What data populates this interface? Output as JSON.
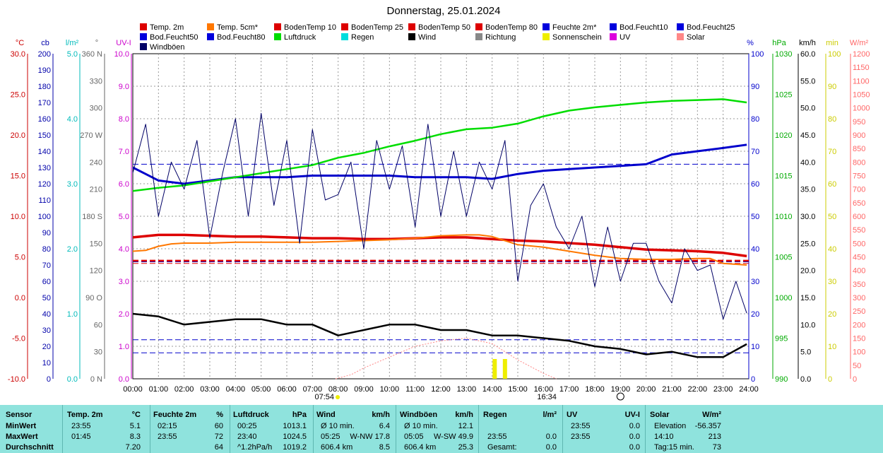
{
  "title": "Donnerstag, 25.01.2024",
  "left_axes": [
    {
      "unit": "°C",
      "color": "#cc0000",
      "labels": [
        "30.0",
        "25.0",
        "20.0",
        "15.0",
        "10.0",
        "5.0",
        "0.0",
        "-5.0",
        "-10.0"
      ]
    },
    {
      "unit": "cb",
      "color": "#0000aa",
      "labels": [
        "200",
        "190",
        "180",
        "170",
        "160",
        "150",
        "140",
        "130",
        "120",
        "110",
        "100",
        "90",
        "80",
        "70",
        "60",
        "50",
        "40",
        "30",
        "20",
        "10",
        "0"
      ]
    },
    {
      "unit": "l/m²",
      "color": "#00bbbb",
      "labels": [
        "5.0",
        "4.0",
        "3.0",
        "2.0",
        "1.0",
        "0.0"
      ]
    },
    {
      "unit": "°",
      "color": "#666666",
      "labels": [
        "360 N",
        "330",
        "300",
        "270 W",
        "240",
        "210",
        "180 S",
        "150",
        "120",
        "90 O",
        "60",
        "30",
        "0 N"
      ]
    },
    {
      "unit": "UV-I",
      "color": "#cc00cc",
      "labels": [
        "10.0",
        "9.0",
        "8.0",
        "7.0",
        "6.0",
        "5.0",
        "4.0",
        "3.0",
        "2.0",
        "1.0",
        "0.0"
      ]
    }
  ],
  "right_axes": [
    {
      "unit": "%",
      "color": "#0000cc",
      "labels": [
        "100",
        "90",
        "80",
        "70",
        "60",
        "50",
        "40",
        "30",
        "20",
        "10",
        "0"
      ]
    },
    {
      "unit": "hPa",
      "color": "#00aa00",
      "labels": [
        "1030",
        "1025",
        "1020",
        "1015",
        "1010",
        "1005",
        "1000",
        "995",
        "990"
      ]
    },
    {
      "unit": "km/h",
      "color": "#000000",
      "labels": [
        "60.0",
        "55.0",
        "50.0",
        "45.0",
        "40.0",
        "35.0",
        "30.0",
        "25.0",
        "20.0",
        "15.0",
        "10.0",
        "5.0",
        "0.0"
      ]
    },
    {
      "unit": "min",
      "color": "#cccc00",
      "labels": [
        "100",
        "90",
        "80",
        "70",
        "60",
        "50",
        "40",
        "30",
        "20",
        "10",
        "0"
      ]
    },
    {
      "unit": "W/m²",
      "color": "#ff6666",
      "labels": [
        "1200",
        "1150",
        "1100",
        "1050",
        "1000",
        "950",
        "900",
        "850",
        "800",
        "750",
        "700",
        "650",
        "600",
        "550",
        "500",
        "450",
        "400",
        "350",
        "300",
        "250",
        "200",
        "150",
        "100",
        "50",
        "0"
      ]
    }
  ],
  "x_labels": [
    "00:00",
    "01:00",
    "02:00",
    "03:00",
    "04:00",
    "05:00",
    "06:00",
    "07:00",
    "08:00",
    "09:00",
    "10:00",
    "11:00",
    "12:00",
    "13:00",
    "14:00",
    "15:00",
    "16:00",
    "17:00",
    "18:00",
    "19:00",
    "20:00",
    "21:00",
    "22:00",
    "23:00",
    "24:00"
  ],
  "sunrise": "07:54",
  "sunset": "16:34",
  "legend": [
    {
      "label": "Temp. 2m",
      "color": "#dd0000"
    },
    {
      "label": "Temp. 5cm*",
      "color": "#ff7700"
    },
    {
      "label": "BodenTemp 10",
      "color": "#dd0000"
    },
    {
      "label": "BodenTemp 25",
      "color": "#dd0000"
    },
    {
      "label": "BodenTemp 50",
      "color": "#dd0000"
    },
    {
      "label": "BodenTemp 80",
      "color": "#dd0000"
    },
    {
      "label": "Feuchte 2m*",
      "color": "#0000dd"
    },
    {
      "label": "Bod.Feucht10",
      "color": "#0000dd"
    },
    {
      "label": "Bod.Feucht25",
      "color": "#0000dd"
    },
    {
      "label": "Bod.Feucht50",
      "color": "#0000dd"
    },
    {
      "label": "Bod.Feucht80",
      "color": "#0000dd"
    },
    {
      "label": "Luftdruck",
      "color": "#00dd00"
    },
    {
      "label": "Regen",
      "color": "#00dddd"
    },
    {
      "label": "Wind",
      "color": "#000000"
    },
    {
      "label": "Richtung",
      "color": "#888888"
    },
    {
      "label": "Sonnenschein",
      "color": "#eeee00"
    },
    {
      "label": "UV",
      "color": "#dd00dd"
    },
    {
      "label": "Solar",
      "color": "#ff8888"
    },
    {
      "label": "Windböen",
      "color": "#000066"
    }
  ],
  "chart_data": {
    "type": "line",
    "title": "Donnerstag, 25.01.2024",
    "x_unit": "hour",
    "xlim": [
      0,
      24
    ],
    "grid": true,
    "series": [
      {
        "name": "Temp. 2m",
        "unit": "°C",
        "color": "#dd0000",
        "x": [
          0,
          1,
          2,
          3,
          4,
          5,
          6,
          7,
          8,
          9,
          10,
          11,
          12,
          13,
          14,
          15,
          16,
          17,
          18,
          19,
          20,
          21,
          22,
          23,
          23.92
        ],
        "y": [
          7.4,
          7.7,
          7.7,
          7.6,
          7.5,
          7.5,
          7.4,
          7.3,
          7.3,
          7.2,
          7.2,
          7.3,
          7.4,
          7.4,
          7.2,
          7.0,
          6.9,
          6.7,
          6.5,
          6.2,
          5.9,
          5.8,
          5.7,
          5.5,
          5.1
        ]
      },
      {
        "name": "Temp. 5cm*",
        "unit": "°C",
        "color": "#ff7700",
        "x": [
          0,
          0.5,
          1,
          1.5,
          2,
          3,
          4,
          5,
          6,
          7,
          8,
          9,
          10,
          11,
          12,
          13,
          13.5,
          14,
          15,
          16,
          17,
          18,
          19,
          20,
          21,
          22,
          22.5,
          23,
          23.92
        ],
        "y": [
          5.7,
          5.8,
          6.3,
          6.6,
          6.7,
          6.7,
          6.8,
          6.8,
          6.8,
          6.8,
          6.9,
          7.0,
          7.1,
          7.3,
          7.6,
          7.7,
          7.7,
          7.5,
          6.5,
          6.2,
          5.7,
          5.2,
          4.8,
          4.7,
          4.7,
          4.8,
          4.8,
          4.2,
          4.0
        ]
      },
      {
        "name": "BodenTemp 10",
        "unit": "°C",
        "color": "#dd0000",
        "x": [
          0,
          24
        ],
        "y": [
          4.5,
          4.5
        ]
      },
      {
        "name": "Feuchte 2m*",
        "unit": "%",
        "color": "#0000cc",
        "x": [
          0,
          0.5,
          1,
          1.5,
          2,
          3,
          4,
          5,
          6,
          7,
          8,
          9,
          10,
          11,
          12,
          13,
          14,
          15,
          16,
          17,
          18,
          19,
          20,
          21,
          22,
          23,
          23.92
        ],
        "y": [
          65,
          63,
          61,
          60.5,
          60,
          61,
          62,
          62,
          62,
          62.5,
          62.5,
          62.5,
          62.5,
          62,
          62,
          62,
          61.5,
          63,
          64,
          64.5,
          65,
          65.5,
          66,
          69,
          70,
          71,
          72
        ]
      },
      {
        "name": "Luftdruck",
        "unit": "hPa",
        "color": "#00dd00",
        "x": [
          0,
          1,
          2,
          3,
          4,
          5,
          6,
          7,
          8,
          9,
          10,
          11,
          12,
          13,
          14,
          15,
          16,
          17,
          18,
          19,
          20,
          21,
          22,
          23,
          23.92
        ],
        "y": [
          1013.1,
          1013.5,
          1013.8,
          1014.3,
          1014.8,
          1015.3,
          1015.8,
          1016.3,
          1017.2,
          1017.8,
          1018.6,
          1019.3,
          1020.1,
          1020.7,
          1020.9,
          1021.4,
          1022.3,
          1023.0,
          1023.4,
          1023.7,
          1024.0,
          1024.2,
          1024.3,
          1024.4,
          1024.0
        ]
      },
      {
        "name": "Wind",
        "unit": "km/h",
        "color": "#000000",
        "x": [
          0,
          1,
          2,
          3,
          4,
          5,
          6,
          7,
          8,
          9,
          10,
          11,
          12,
          13,
          14,
          15,
          16,
          17,
          18,
          19,
          20,
          21,
          22,
          23,
          23.92
        ],
        "y": [
          12,
          11.5,
          10,
          10.5,
          11,
          11,
          10,
          10,
          8,
          9,
          10,
          10,
          9,
          9,
          8,
          8,
          7.5,
          7,
          6,
          5.5,
          4.5,
          5,
          4,
          4,
          6.4
        ]
      },
      {
        "name": "Windböen",
        "unit": "km/h",
        "color": "#000066",
        "x": [
          0,
          0.5,
          1,
          1.5,
          2,
          2.5,
          3,
          3.5,
          4,
          4.5,
          5,
          5.5,
          6,
          6.5,
          7,
          7.5,
          8,
          8.5,
          9,
          9.5,
          10,
          10.5,
          11,
          11.5,
          12,
          12.5,
          13,
          13.5,
          14,
          14.5,
          15,
          15.5,
          16,
          16.5,
          17,
          17.5,
          18,
          18.5,
          19,
          19.5,
          20,
          20.5,
          21,
          21.5,
          22,
          22.5,
          23,
          23.5,
          23.92
        ],
        "y": [
          38,
          47,
          30,
          40,
          35,
          44,
          26,
          38,
          48,
          30,
          49,
          32,
          44,
          25,
          46,
          33,
          34,
          40,
          24,
          44,
          35,
          43,
          28,
          47,
          30,
          42,
          30,
          40,
          35,
          44,
          18,
          32,
          36,
          28,
          24,
          30,
          17,
          28,
          18,
          25,
          25,
          18,
          14,
          24,
          20,
          21,
          11,
          18,
          12.1
        ]
      },
      {
        "name": "Solar",
        "unit": "W/m²",
        "color": "#ff8888",
        "x": [
          7.9,
          8.5,
          9,
          10,
          11,
          12,
          13,
          14,
          14.5,
          15,
          16,
          16.5
        ],
        "y": [
          0,
          15,
          40,
          80,
          120,
          140,
          150,
          130,
          100,
          70,
          20,
          0
        ]
      },
      {
        "name": "Sonnenschein",
        "unit": "min",
        "color": "#eeee00",
        "x": [
          14.1,
          14.5
        ],
        "y": [
          5,
          5
        ]
      }
    ],
    "summary": {
      "MinWert": {
        "temp": [
          "23:55",
          "5.1"
        ],
        "feuchte": [
          "02:15",
          "60"
        ],
        "luftdruck": [
          "00:25",
          "1013.1"
        ],
        "wind": [
          "Ø 10 min.",
          "6.4"
        ],
        "boeen": [
          "Ø 10 min.",
          "12.1"
        ],
        "uv": [
          "23:55",
          "0.0"
        ],
        "solar": [
          "Elevation",
          "-56.357"
        ]
      },
      "MaxWert": {
        "temp": [
          "01:45",
          "8.3"
        ],
        "feuchte": [
          "23:55",
          "72"
        ],
        "luftdruck": [
          "23:40",
          "1024.5"
        ],
        "wind": [
          "05:25",
          "W-NW 17.8"
        ],
        "boeen": [
          "05:05",
          "W-SW 49.9"
        ],
        "regen": [
          "23:55",
          "0.0"
        ],
        "uv": [
          "23:55",
          "0.0"
        ],
        "solar": [
          "14:10",
          "213"
        ]
      },
      "Durchschnitt": {
        "temp": "7.20",
        "feuchte": "64",
        "luftdruck": [
          "^1.2hPa/h",
          "1019.2"
        ],
        "wind": [
          "606.4 km",
          "8.5"
        ],
        "boeen": [
          "606.4 km",
          "25.3"
        ],
        "regen": [
          "Gesamt:",
          "0.0"
        ],
        "uv": "0.0",
        "solar": [
          "Tag:15 min.",
          "73"
        ]
      }
    }
  },
  "table": {
    "headers": {
      "sensor": "Sensor",
      "temp": "Temp. 2m",
      "temp_unit": "°C",
      "feuchte": "Feuchte 2m",
      "feuchte_unit": "%",
      "luftdruck": "Luftdruck",
      "luftdruck_unit": "hPa",
      "wind": "Wind",
      "wind_unit": "km/h",
      "boeen": "Windböen",
      "boeen_unit": "km/h",
      "regen": "Regen",
      "regen_unit": "l/m²",
      "uv": "UV",
      "uv_unit": "UV-I",
      "solar": "Solar",
      "solar_unit": "W/m²"
    },
    "rows": [
      {
        "label": "MinWert",
        "temp_t": "23:55",
        "temp_v": "5.1",
        "feuchte_t": "02:15",
        "feuchte_v": "60",
        "luft_t": "00:25",
        "luft_v": "1013.1",
        "wind_t": "Ø 10 min.",
        "wind_v": "6.4",
        "boeen_t": "Ø 10 min.",
        "boeen_v": "12.1",
        "regen_t": "",
        "regen_v": "",
        "uv_t": "23:55",
        "uv_v": "0.0",
        "solar_t": "Elevation",
        "solar_v": "-56.357"
      },
      {
        "label": "MaxWert",
        "temp_t": "01:45",
        "temp_v": "8.3",
        "feuchte_t": "23:55",
        "feuchte_v": "72",
        "luft_t": "23:40",
        "luft_v": "1024.5",
        "wind_t": "05:25",
        "wind_v": "W-NW 17.8",
        "boeen_t": "05:05",
        "boeen_v": "W-SW 49.9",
        "regen_t": "23:55",
        "regen_v": "0.0",
        "uv_t": "23:55",
        "uv_v": "0.0",
        "solar_t": "14:10",
        "solar_v": "213"
      },
      {
        "label": "Durchschnitt",
        "temp_t": "",
        "temp_v": "7.20",
        "feuchte_t": "",
        "feuchte_v": "64",
        "luft_t": "^1.2hPa/h",
        "luft_v": "1019.2",
        "wind_t": "606.4 km",
        "wind_v": "8.5",
        "boeen_t": "606.4 km",
        "boeen_v": "25.3",
        "regen_t": "Gesamt:",
        "regen_v": "0.0",
        "uv_t": "",
        "uv_v": "0.0",
        "solar_t": "Tag:15 min.",
        "solar_v": "73"
      }
    ]
  }
}
